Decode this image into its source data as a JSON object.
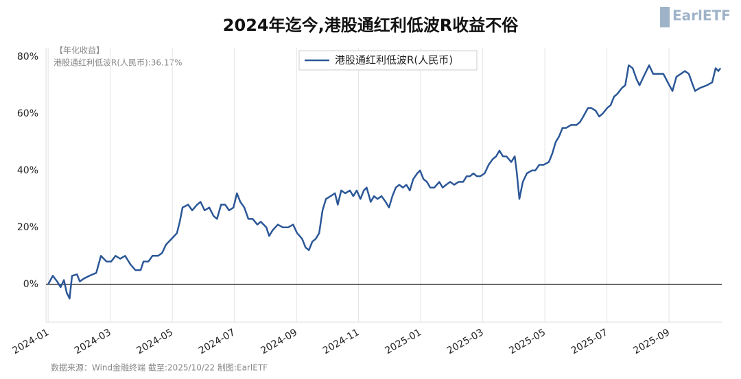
{
  "chart_data": {
    "type": "line",
    "title": "2024年迄今,港股通红利低波R收益不俗",
    "annotations": [
      "【年化收益】",
      "港股通红利低波R(人民币):36.17%"
    ],
    "source": "数据来源：Wind金融终端 截至:2025/10/22 制图:EarlETF",
    "logo": "EarlETF",
    "x": [
      0,
      0.15,
      0.29,
      0.4,
      0.51,
      0.6,
      0.69,
      0.77,
      0.93,
      1.02,
      1.15,
      1.33,
      1.55,
      1.7,
      1.88,
      2.03,
      2.17,
      2.32,
      2.48,
      2.65,
      2.81,
      2.98,
      3.07,
      3.23,
      3.36,
      3.54,
      3.67,
      3.8,
      3.98,
      4.15,
      4.24,
      4.33,
      4.51,
      4.64,
      4.8,
      4.91,
      5.04,
      5.19,
      5.33,
      5.44,
      5.57,
      5.7,
      5.83,
      5.97,
      6.08,
      6.19,
      6.32,
      6.45,
      6.59,
      6.74,
      6.85,
      7.03,
      7.12,
      7.23,
      7.4,
      7.56,
      7.73,
      7.89,
      8.02,
      8.18,
      8.29,
      8.4,
      8.51,
      8.62,
      8.73,
      8.84,
      8.95,
      9.1,
      9.24,
      9.33,
      9.44,
      9.57,
      9.72,
      9.83,
      9.94,
      10.06,
      10.17,
      10.26,
      10.39,
      10.5,
      10.61,
      10.74,
      10.87,
      10.98,
      11.09,
      11.2,
      11.31,
      11.43,
      11.54,
      11.65,
      11.76,
      11.89,
      11.98,
      12.09,
      12.2,
      12.31,
      12.44,
      12.6,
      12.71,
      12.82,
      12.95,
      13.08,
      13.22,
      13.37,
      13.48,
      13.59,
      13.7,
      13.81,
      13.92,
      14.06,
      14.19,
      14.32,
      14.43,
      14.54,
      14.65,
      14.76,
      14.92,
      15.03,
      15.09,
      15.18,
      15.29,
      15.42,
      15.58,
      15.69,
      15.82,
      15.96,
      16.13,
      16.24,
      16.35,
      16.46,
      16.57,
      16.69,
      16.84,
      17.02,
      17.13,
      17.24,
      17.39,
      17.5,
      17.64,
      17.75,
      17.86,
      18.01,
      18.12,
      18.23,
      18.34,
      18.48,
      18.59,
      18.7,
      18.83,
      18.96,
      19.05,
      19.18,
      19.36,
      19.49,
      19.67,
      19.82,
      19.96,
      20.11,
      20.24,
      20.38,
      20.51,
      20.64,
      20.77,
      20.84,
      20.99,
      21.22,
      21.39,
      21.5,
      21.59,
      21.66
    ],
    "series": [
      {
        "name": "港股通红利低波R(人民币)",
        "color": "#2b5797",
        "values": [
          0,
          3,
          1,
          -1,
          1.5,
          -3,
          -5,
          3,
          3.5,
          1,
          2,
          3,
          4,
          10,
          8,
          8,
          10,
          9,
          10,
          7,
          5,
          5,
          8,
          8,
          10,
          10,
          11,
          14,
          16,
          18,
          22,
          27,
          28,
          26,
          28,
          29,
          26,
          27,
          24,
          23,
          28,
          28,
          26,
          27,
          32,
          29,
          27,
          23,
          23,
          21,
          22,
          20,
          17,
          19,
          21,
          20,
          20,
          21,
          18,
          16,
          13,
          12,
          15,
          16,
          18,
          26,
          30,
          31,
          32,
          28,
          33,
          32,
          33,
          31,
          33,
          30,
          33,
          34,
          29,
          31,
          30,
          31,
          29,
          27,
          31,
          34,
          35,
          34,
          35,
          33,
          37,
          39,
          40,
          37,
          36,
          34,
          34,
          36,
          34,
          35,
          36,
          35,
          36,
          36,
          38,
          38,
          39,
          38,
          38,
          39,
          42,
          44,
          45,
          47,
          45,
          45,
          43,
          45,
          40,
          30,
          36,
          39,
          40,
          40,
          42,
          42,
          43,
          46,
          50,
          52,
          55,
          55,
          56,
          56,
          57,
          59,
          62,
          62,
          61,
          59,
          60,
          62,
          63,
          66,
          67,
          69,
          70,
          77,
          76,
          72,
          70,
          73,
          77,
          74,
          74,
          74,
          71,
          68,
          73,
          74,
          75,
          74,
          70,
          68,
          69,
          70,
          71,
          76,
          75,
          76
        ]
      }
    ],
    "xlim": [
      -0.07,
      21.7
    ],
    "xticks": [
      {
        "value": 0,
        "label": "2024-01"
      },
      {
        "value": 2,
        "label": "2024-03"
      },
      {
        "value": 4,
        "label": "2024-05"
      },
      {
        "value": 6,
        "label": "2024-07"
      },
      {
        "value": 8,
        "label": "2024-09"
      },
      {
        "value": 10,
        "label": "2024-11"
      },
      {
        "value": 12,
        "label": "2025-01"
      },
      {
        "value": 14,
        "label": "2025-03"
      },
      {
        "value": 16,
        "label": "2025-05"
      },
      {
        "value": 18,
        "label": "2025-07"
      },
      {
        "value": 20,
        "label": "2025-09"
      }
    ],
    "ylim": [
      -13.3,
      83.1
    ],
    "yticks": [
      {
        "value": 0,
        "label": "0%"
      },
      {
        "value": 20,
        "label": "20%"
      },
      {
        "value": 40,
        "label": "40%"
      },
      {
        "value": 60,
        "label": "60%"
      },
      {
        "value": 80,
        "label": "80%"
      }
    ],
    "grid": true
  }
}
